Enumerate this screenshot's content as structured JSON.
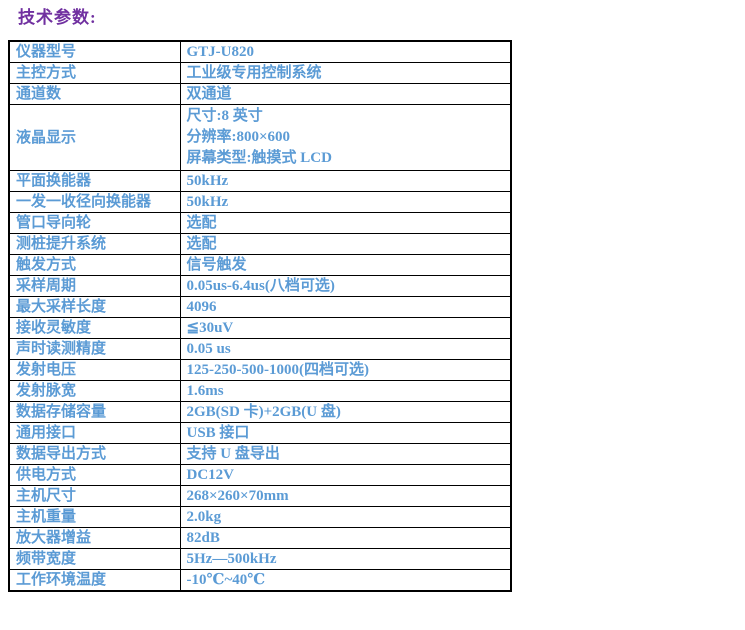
{
  "page": {
    "title": "技术参数:",
    "colors": {
      "title": "#7030A0",
      "text": "#5B9BD5",
      "border": "#000000",
      "background": "#FFFFFF"
    }
  },
  "table": {
    "rows": [
      {
        "label": "仪器型号",
        "value": "GTJ-U820"
      },
      {
        "label": "主控方式",
        "value": "工业级专用控制系统"
      },
      {
        "label": "通道数",
        "value": "双通道"
      },
      {
        "label": "液晶显示",
        "value_lines": [
          "尺寸:8 英寸",
          "分辨率:800×600",
          "屏幕类型:触摸式 LCD"
        ]
      },
      {
        "label": "平面换能器",
        "value": "50kHz"
      },
      {
        "label": "一发一收径向换能器",
        "value": "50kHz"
      },
      {
        "label": "管口导向轮",
        "value": "选配"
      },
      {
        "label": "测桩提升系统",
        "value": "选配"
      },
      {
        "label": "触发方式",
        "value": "信号触发"
      },
      {
        "label": "采样周期",
        "value": "0.05us-6.4us(八档可选)"
      },
      {
        "label": "最大采样长度",
        "value": "4096"
      },
      {
        "label": "接收灵敏度",
        "value": "≦30uV"
      },
      {
        "label": "声时读测精度",
        "value": "0.05 us"
      },
      {
        "label": "发射电压",
        "value": "125-250-500-1000(四档可选)"
      },
      {
        "label": "发射脉宽",
        "value": "1.6ms"
      },
      {
        "label": "数据存储容量",
        "value": "2GB(SD 卡)+2GB(U 盘)"
      },
      {
        "label": "通用接口",
        "value": "USB 接口"
      },
      {
        "label": "数据导出方式",
        "value": "支持 U 盘导出"
      },
      {
        "label": "供电方式",
        "value": "DC12V"
      },
      {
        "label": "主机尺寸",
        "value": "268×260×70mm"
      },
      {
        "label": "主机重量",
        "value": "2.0kg"
      },
      {
        "label": "放大器增益",
        "value": "82dB"
      },
      {
        "label": "频带宽度",
        "value": "5Hz—500kHz"
      },
      {
        "label": "工作环境温度",
        "value": "-10℃~40℃"
      }
    ]
  }
}
